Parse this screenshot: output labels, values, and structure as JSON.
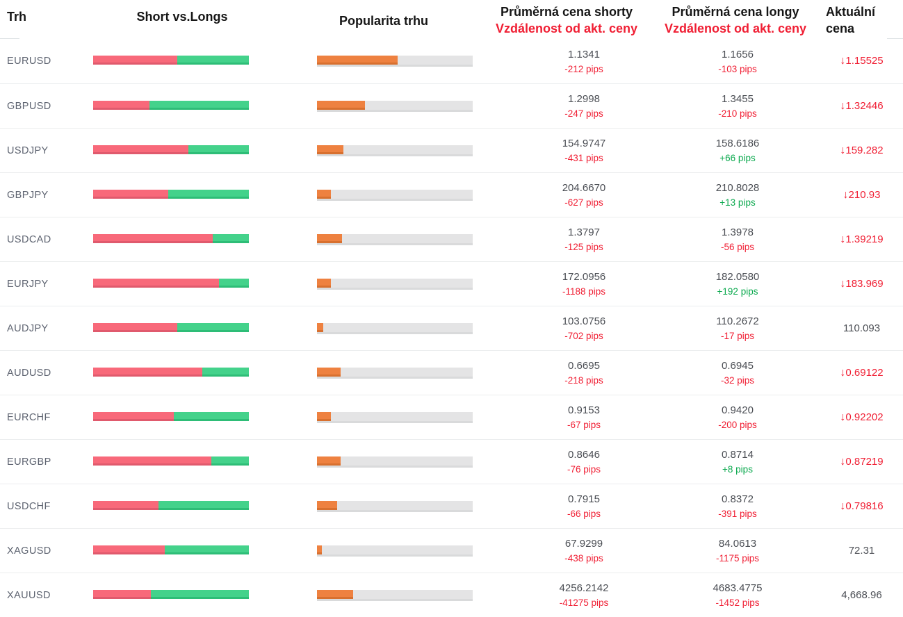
{
  "header": {
    "trh": "Trh",
    "short_vs_longs": "Short vs.Longs",
    "popularita": "Popularita trhu",
    "short_avg_title": "Průměrná cena shorty",
    "short_avg_subtitle": "Vzdálenost od akt. ceny",
    "long_avg_title": "Průměrná cena longy",
    "long_avg_subtitle": "Vzdálenost od akt. ceny",
    "current_title_line1": "Aktuální",
    "current_title_line2": "cena"
  },
  "icons": {
    "down_arrow": "↓"
  },
  "colors": {
    "text_red": "#f01e33",
    "text_green": "#0ba94e",
    "bar_short_red": "#f8697a",
    "bar_long_green": "#44d28b",
    "bar_popularity_orange": "#ee8140",
    "bar_track_grey": "#e4e4e5",
    "label_slate": "#5d6370"
  },
  "rows": [
    {
      "market": "EURUSD",
      "shorts_pct": 54,
      "popularity_pct": 52,
      "short_avg_price": "1.1341",
      "short_distance": "-212 pips",
      "long_avg_price": "1.1656",
      "long_distance": "-103 pips",
      "current_price": "1.15525",
      "direction": "down"
    },
    {
      "market": "GBPUSD",
      "shorts_pct": 36,
      "popularity_pct": 31,
      "short_avg_price": "1.2998",
      "short_distance": "-247 pips",
      "long_avg_price": "1.3455",
      "long_distance": "-210 pips",
      "current_price": "1.32446",
      "direction": "down"
    },
    {
      "market": "USDJPY",
      "shorts_pct": 61,
      "popularity_pct": 17,
      "short_avg_price": "154.9747",
      "short_distance": "-431 pips",
      "long_avg_price": "158.6186",
      "long_distance": "+66 pips",
      "current_price": "159.282",
      "direction": "down"
    },
    {
      "market": "GBPJPY",
      "shorts_pct": 48,
      "popularity_pct": 9,
      "short_avg_price": "204.6670",
      "short_distance": "-627 pips",
      "long_avg_price": "210.8028",
      "long_distance": "+13 pips",
      "current_price": "210.93",
      "direction": "down"
    },
    {
      "market": "USDCAD",
      "shorts_pct": 77,
      "popularity_pct": 16,
      "short_avg_price": "1.3797",
      "short_distance": "-125 pips",
      "long_avg_price": "1.3978",
      "long_distance": "-56 pips",
      "current_price": "1.39219",
      "direction": "down"
    },
    {
      "market": "EURJPY",
      "shorts_pct": 81,
      "popularity_pct": 9,
      "short_avg_price": "172.0956",
      "short_distance": "-1188 pips",
      "long_avg_price": "182.0580",
      "long_distance": "+192 pips",
      "current_price": "183.969",
      "direction": "down"
    },
    {
      "market": "AUDJPY",
      "shorts_pct": 54,
      "popularity_pct": 4,
      "short_avg_price": "103.0756",
      "short_distance": "-702 pips",
      "long_avg_price": "110.2672",
      "long_distance": "-17 pips",
      "current_price": "110.093",
      "direction": "none"
    },
    {
      "market": "AUDUSD",
      "shorts_pct": 70,
      "popularity_pct": 15,
      "short_avg_price": "0.6695",
      "short_distance": "-218 pips",
      "long_avg_price": "0.6945",
      "long_distance": "-32 pips",
      "current_price": "0.69122",
      "direction": "down"
    },
    {
      "market": "EURCHF",
      "shorts_pct": 52,
      "popularity_pct": 9,
      "short_avg_price": "0.9153",
      "short_distance": "-67 pips",
      "long_avg_price": "0.9420",
      "long_distance": "-200 pips",
      "current_price": "0.92202",
      "direction": "down"
    },
    {
      "market": "EURGBP",
      "shorts_pct": 76,
      "popularity_pct": 15,
      "short_avg_price": "0.8646",
      "short_distance": "-76 pips",
      "long_avg_price": "0.8714",
      "long_distance": "+8 pips",
      "current_price": "0.87219",
      "direction": "down"
    },
    {
      "market": "USDCHF",
      "shorts_pct": 42,
      "popularity_pct": 13,
      "short_avg_price": "0.7915",
      "short_distance": "-66 pips",
      "long_avg_price": "0.8372",
      "long_distance": "-391 pips",
      "current_price": "0.79816",
      "direction": "down"
    },
    {
      "market": "XAGUSD",
      "shorts_pct": 46,
      "popularity_pct": 3,
      "short_avg_price": "67.9299",
      "short_distance": "-438 pips",
      "long_avg_price": "84.0613",
      "long_distance": "-1175 pips",
      "current_price": "72.31",
      "direction": "none"
    },
    {
      "market": "XAUUSD",
      "shorts_pct": 37,
      "popularity_pct": 23,
      "short_avg_price": "4256.2142",
      "short_distance": "-41275 pips",
      "long_avg_price": "4683.4775",
      "long_distance": "-1452 pips",
      "current_price": "4,668.96",
      "direction": "none"
    }
  ]
}
